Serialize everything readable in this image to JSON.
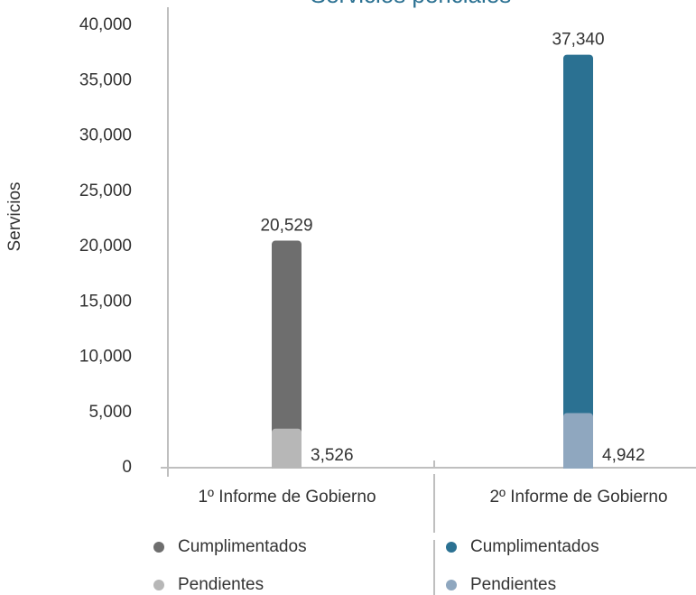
{
  "chart_data": {
    "type": "bar",
    "title": "Servicios periciales",
    "ylabel": "Servicios",
    "categories": [
      "1º Informe de Gobierno",
      "2º Informe de Gobierno"
    ],
    "series": [
      {
        "name": "Cumplimentados",
        "colors": [
          "#6e6e6e",
          "#2b7192"
        ],
        "values": [
          20529,
          37340
        ],
        "value_labels": [
          "20,529",
          "37,340"
        ]
      },
      {
        "name": "Pendientes",
        "colors": [
          "#b7b7b7",
          "#8fa7bf"
        ],
        "values": [
          3526,
          4942
        ],
        "value_labels": [
          "3,526",
          "4,942"
        ]
      }
    ],
    "ylim": [
      0,
      40000
    ],
    "yticks": [
      0,
      {
        "value": 5000,
        "label": "5,000"
      },
      {
        "value": 10000,
        "label": "10,000"
      },
      {
        "value": 15000,
        "label": "15,000"
      },
      {
        "value": 20000,
        "label": "20,000"
      },
      {
        "value": 25000,
        "label": "25,000"
      },
      {
        "value": 30000,
        "label": "30,000"
      },
      {
        "value": 35000,
        "label": "35,000"
      },
      {
        "value": 40000,
        "label": "40,000"
      }
    ]
  }
}
